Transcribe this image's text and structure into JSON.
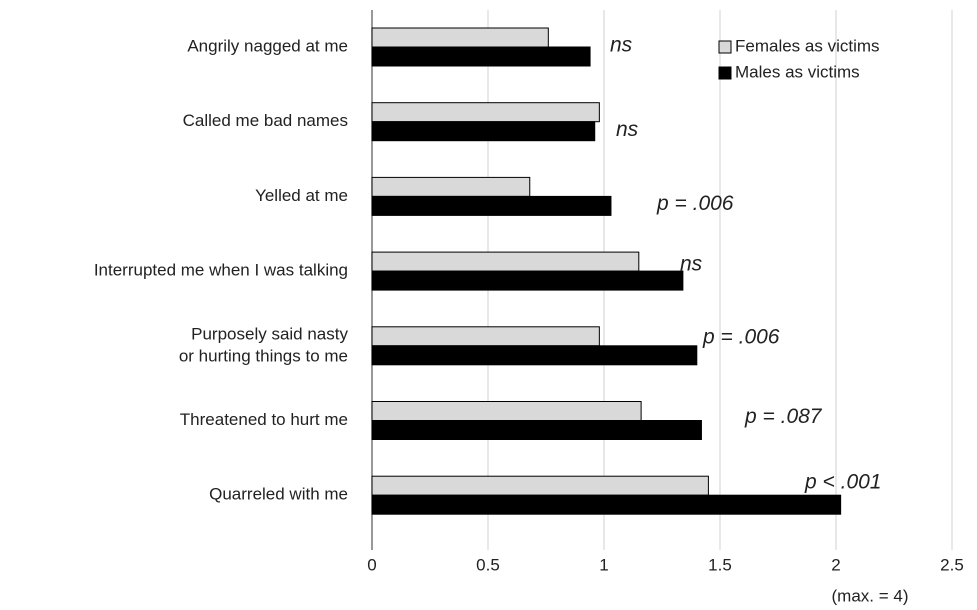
{
  "chart_data": {
    "type": "barh",
    "categories": [
      "Angrily nagged at me",
      "Called me bad names",
      "Yelled at me",
      "Interrupted me when I was talking",
      [
        "Purposely said nasty",
        "or hurting things to me"
      ],
      "Threatened to hurt me",
      "Quarreled with me"
    ],
    "series": [
      {
        "name": "Females as victims",
        "color": "#d9d9d9",
        "values": [
          0.76,
          0.98,
          0.68,
          1.15,
          0.98,
          1.16,
          1.45
        ]
      },
      {
        "name": "Males as victims",
        "color": "#000000",
        "values": [
          0.94,
          0.96,
          1.03,
          1.34,
          1.4,
          1.42,
          2.02
        ]
      }
    ],
    "annotations": [
      "ns",
      "ns",
      "p = .006",
      "ns",
      "p = .006",
      "p = .087",
      "p < .001"
    ],
    "axis_note": "(max. = 4)",
    "xlim": [
      0,
      2.5
    ],
    "xticks": [
      0,
      0.5,
      1,
      1.5,
      2,
      2.5
    ],
    "grid": true,
    "legend": "upper right"
  }
}
